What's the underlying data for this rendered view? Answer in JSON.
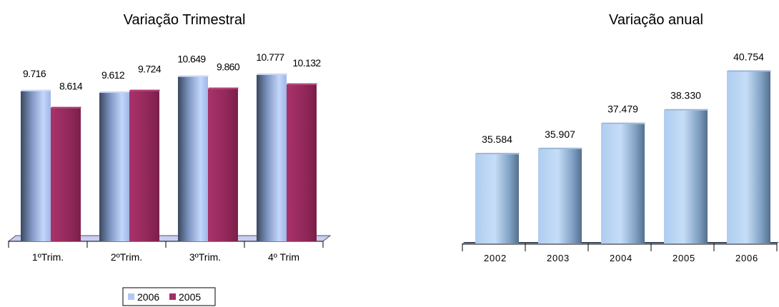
{
  "colors": {
    "series_2006_light": "#b3c9f5",
    "series_2006_dark": "#3a4860",
    "series_2005_light": "#a03060",
    "series_2005_dark": "#80204a",
    "annual_light": "#b8d4f2",
    "annual_dark": "#5b7896",
    "floor": "#c9cdf2"
  },
  "chart_data": [
    {
      "type": "bar",
      "title": "Variação Trimestral",
      "categories": [
        "1ºTrim.",
        "2ºTrim.",
        "3ºTrim.",
        "4º Trim"
      ],
      "series": [
        {
          "name": "2006",
          "values": [
            9716,
            9612,
            10649,
            10777
          ],
          "labels": [
            "9.716",
            "9.612",
            "10.649",
            "10.777"
          ]
        },
        {
          "name": "2005",
          "values": [
            8614,
            9724,
            9860,
            10132
          ],
          "labels": [
            "8.614",
            "9.724",
            "9.860",
            "10.132"
          ]
        }
      ],
      "legend": "bottom",
      "grid": false
    },
    {
      "type": "bar",
      "title": "Variação anual",
      "categories": [
        "2002",
        "2003",
        "2004",
        "2005",
        "2006"
      ],
      "values": [
        35584,
        35907,
        37479,
        38330,
        40754
      ],
      "labels": [
        "35.584",
        "35.907",
        "37.479",
        "38.330",
        "40.754"
      ],
      "grid": false
    }
  ]
}
